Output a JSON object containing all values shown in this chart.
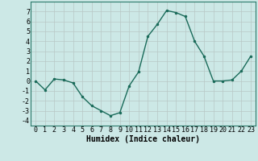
{
  "x": [
    0,
    1,
    2,
    3,
    4,
    5,
    6,
    7,
    8,
    9,
    10,
    11,
    12,
    13,
    14,
    15,
    16,
    17,
    18,
    19,
    20,
    21,
    22,
    23
  ],
  "y": [
    0.0,
    -0.9,
    0.2,
    0.1,
    -0.2,
    -1.6,
    -2.5,
    -3.0,
    -3.5,
    -3.2,
    -0.5,
    0.9,
    4.5,
    5.7,
    7.1,
    6.9,
    6.5,
    4.0,
    2.5,
    0.0,
    0.0,
    0.1,
    1.0,
    2.5
  ],
  "line_color": "#1a6b5a",
  "marker": ".",
  "marker_size": 3,
  "bg_color": "#cce8e6",
  "grid_color": "#b8c8c6",
  "xlabel": "Humidex (Indice chaleur)",
  "xlabel_fontsize": 7,
  "ylim": [
    -4.5,
    8.0
  ],
  "xlim": [
    -0.5,
    23.5
  ],
  "yticks": [
    -4,
    -3,
    -2,
    -1,
    0,
    1,
    2,
    3,
    4,
    5,
    6,
    7
  ],
  "xticks": [
    0,
    1,
    2,
    3,
    4,
    5,
    6,
    7,
    8,
    9,
    10,
    11,
    12,
    13,
    14,
    15,
    16,
    17,
    18,
    19,
    20,
    21,
    22,
    23
  ],
  "tick_fontsize": 6,
  "line_width": 1.0
}
